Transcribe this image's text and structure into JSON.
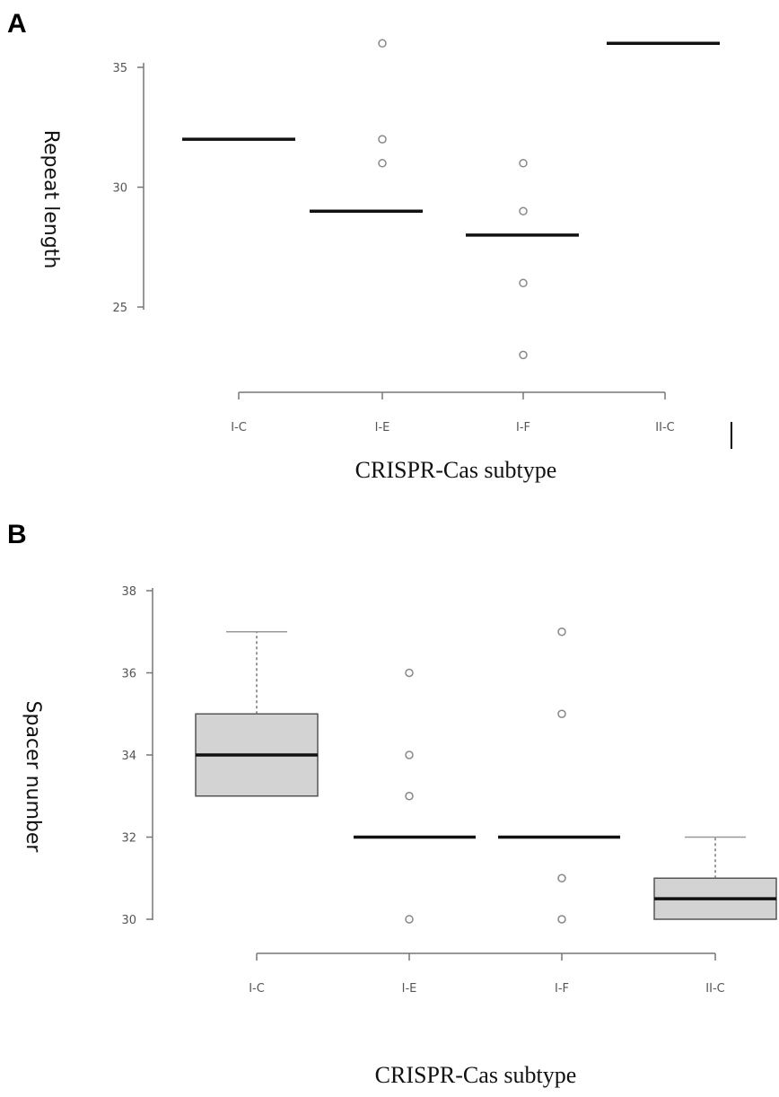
{
  "chart_data": [
    {
      "panel": "A",
      "type": "box",
      "xlabel": "CRISPR-Cas subtype",
      "ylabel": "Repeat length",
      "ylim": [
        21,
        37
      ],
      "yticks": [
        25,
        30,
        35
      ],
      "categories": [
        "I-C",
        "I-E",
        "I-F",
        "II-C"
      ],
      "boxes": [
        {
          "category": "I-C",
          "median": 32,
          "q1": 32,
          "q3": 32,
          "whisker_low": 32,
          "whisker_high": 32,
          "outliers": []
        },
        {
          "category": "I-E",
          "median": 29,
          "q1": 29,
          "q3": 29,
          "whisker_low": 29,
          "whisker_high": 29,
          "outliers": [
            36,
            32,
            31
          ]
        },
        {
          "category": "I-F",
          "median": 28,
          "q1": 28,
          "q3": 28,
          "whisker_low": 28,
          "whisker_high": 28,
          "outliers": [
            31,
            29,
            26,
            23
          ]
        },
        {
          "category": "II-C",
          "median": 36,
          "q1": 36,
          "q3": 36,
          "whisker_low": 36,
          "whisker_high": 36,
          "outliers": []
        }
      ],
      "grid": false,
      "fill": "#d3d3d3"
    },
    {
      "panel": "B",
      "type": "box",
      "xlabel": "CRISPR-Cas subtype",
      "ylabel": "Spacer number",
      "ylim": [
        29.2,
        38.2
      ],
      "yticks": [
        30,
        32,
        34,
        36,
        38
      ],
      "categories": [
        "I-C",
        "I-E",
        "I-F",
        "II-C"
      ],
      "boxes": [
        {
          "category": "I-C",
          "median": 34,
          "q1": 33,
          "q3": 35,
          "whisker_low": 33,
          "whisker_high": 37,
          "outliers": []
        },
        {
          "category": "I-E",
          "median": 32,
          "q1": 32,
          "q3": 32,
          "whisker_low": 32,
          "whisker_high": 32,
          "outliers": [
            36,
            34,
            33,
            30
          ]
        },
        {
          "category": "I-F",
          "median": 32,
          "q1": 32,
          "q3": 32,
          "whisker_low": 32,
          "whisker_high": 32,
          "outliers": [
            37,
            35,
            31,
            30
          ]
        },
        {
          "category": "II-C",
          "median": 30.5,
          "q1": 30,
          "q3": 31,
          "whisker_low": 30,
          "whisker_high": 32,
          "outliers": []
        }
      ],
      "grid": false,
      "fill": "#d3d3d3"
    }
  ]
}
